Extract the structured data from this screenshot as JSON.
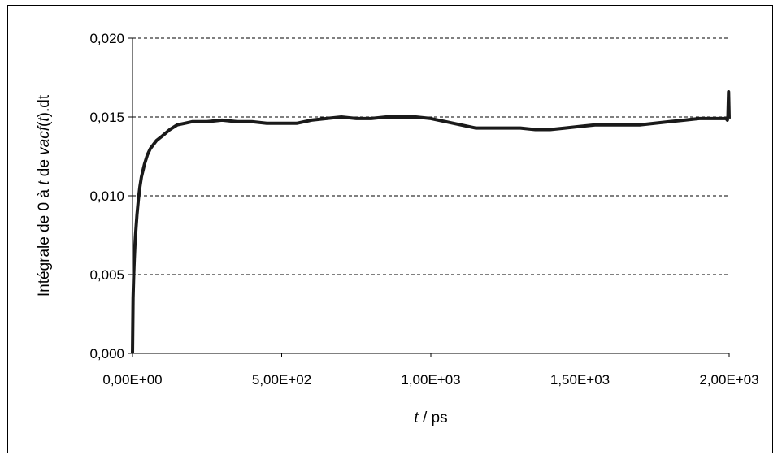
{
  "chart_data": {
    "type": "line",
    "xlabel_parts": {
      "var": "t",
      "unit": " / ps"
    },
    "ylabel_parts": {
      "pre": "Intégrale de 0 à ",
      "var1": "t",
      "mid": " de ",
      "var2": "vacf",
      "paren": "(",
      "var3": "t",
      "post": ").dt"
    },
    "xlim": [
      0,
      2000
    ],
    "ylim": [
      0,
      0.02
    ],
    "x_tick_values": [
      0,
      500,
      1000,
      1500,
      2000
    ],
    "x_tick_labels": [
      "0,00E+00",
      "5,00E+02",
      "1,00E+03",
      "1,50E+03",
      "2,00E+03"
    ],
    "y_tick_values": [
      0,
      0.005,
      0.01,
      0.015,
      0.02
    ],
    "y_tick_labels": [
      "0,000",
      "0,005",
      "0,010",
      "0,015",
      "0,020"
    ],
    "grid": "horizontal dashed",
    "line_color": "#1a1a1a",
    "series": [
      {
        "x": [
          0,
          2,
          4,
          6,
          8,
          10,
          15,
          20,
          25,
          30,
          40,
          50,
          60,
          80,
          100,
          125,
          150,
          175,
          200,
          250,
          300,
          350,
          400,
          450,
          500,
          550,
          600,
          650,
          700,
          750,
          800,
          850,
          900,
          950,
          1000,
          1050,
          1100,
          1150,
          1200,
          1250,
          1300,
          1350,
          1400,
          1450,
          1500,
          1550,
          1600,
          1650,
          1700,
          1750,
          1800,
          1850,
          1900,
          1950,
          1990,
          1994,
          1996,
          1998,
          2000
        ],
        "y": [
          0.0,
          0.0035,
          0.005,
          0.006,
          0.0068,
          0.0075,
          0.0088,
          0.0098,
          0.0106,
          0.0112,
          0.012,
          0.0126,
          0.013,
          0.0135,
          0.0138,
          0.0142,
          0.0145,
          0.0146,
          0.0147,
          0.0147,
          0.0148,
          0.0147,
          0.0147,
          0.0146,
          0.0146,
          0.0146,
          0.0148,
          0.0149,
          0.015,
          0.0149,
          0.0149,
          0.015,
          0.015,
          0.015,
          0.0149,
          0.0147,
          0.0145,
          0.0143,
          0.0143,
          0.0143,
          0.0143,
          0.0142,
          0.0142,
          0.0143,
          0.0144,
          0.0145,
          0.0145,
          0.0145,
          0.0145,
          0.0146,
          0.0147,
          0.0148,
          0.0149,
          0.0149,
          0.0149,
          0.0148,
          0.015,
          0.0166,
          0.0149
        ]
      }
    ]
  }
}
